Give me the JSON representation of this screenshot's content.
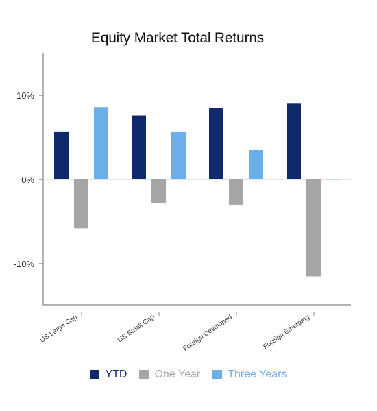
{
  "chart_data": {
    "type": "bar",
    "title": "Equity Market Total Returns",
    "xlabel": "",
    "ylabel": "",
    "categories": [
      "US Large Cap",
      "US Small Cap",
      "Foreign Developed",
      "Foreign Emerging"
    ],
    "series": [
      {
        "name": "YTD",
        "color": "#0f2a6b",
        "values": [
          5.7,
          7.6,
          8.5,
          9.0
        ]
      },
      {
        "name": "One Year",
        "color": "#a6a6a6",
        "values": [
          -5.8,
          -2.8,
          -3.0,
          -11.5
        ]
      },
      {
        "name": "Three Years",
        "color": "#6aaeea",
        "values": [
          8.6,
          5.7,
          3.5,
          0.05
        ]
      }
    ],
    "ylim": [
      -15,
      15
    ],
    "yticks": [
      {
        "value": 10,
        "label": "10%"
      },
      {
        "value": 0,
        "label": "0%"
      },
      {
        "value": -10,
        "label": "-10%"
      }
    ],
    "grid": false,
    "legend_position": "bottom"
  },
  "legend": {
    "text_colors": [
      "#0f2a6b",
      "#a6a6a6",
      "#6aaeea"
    ]
  }
}
